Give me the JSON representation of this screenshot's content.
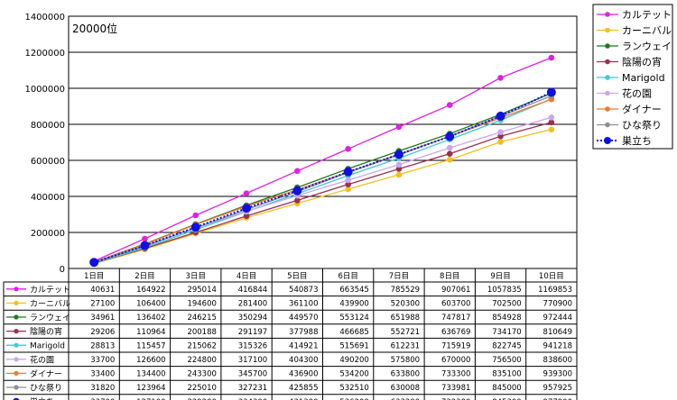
{
  "chart_data": {
    "type": "line",
    "annotation": "20000位",
    "categories": [
      "1日目",
      "2日目",
      "3日目",
      "4日目",
      "5日目",
      "6日目",
      "7日目",
      "8日目",
      "9日目",
      "10日目"
    ],
    "ylim": [
      0,
      1400000
    ],
    "yticks": [
      0,
      200000,
      400000,
      600000,
      800000,
      1000000,
      1200000,
      1400000
    ],
    "grid": true,
    "legend_position": "right",
    "series": [
      {
        "name": "カルテット",
        "color": "#e020e0",
        "values": [
          40631,
          164922,
          295014,
          416844,
          540873,
          663545,
          785529,
          907061,
          1057835,
          1169853
        ]
      },
      {
        "name": "カーニバル",
        "color": "#f0c020",
        "values": [
          27100,
          106400,
          194600,
          281400,
          361100,
          439900,
          520300,
          603700,
          702500,
          770900
        ]
      },
      {
        "name": "ランウェイ",
        "color": "#207820",
        "values": [
          34961,
          136402,
          246215,
          350294,
          449570,
          553124,
          651988,
          747817,
          854928,
          972444
        ]
      },
      {
        "name": "陰陽の宵",
        "color": "#983050",
        "values": [
          29206,
          110964,
          200188,
          291197,
          377988,
          466685,
          552721,
          636769,
          734170,
          810649
        ]
      },
      {
        "name": "Marigold",
        "color": "#40c8d8",
        "values": [
          28813,
          115457,
          215062,
          315326,
          414921,
          515691,
          612231,
          715919,
          822745,
          941218
        ]
      },
      {
        "name": "花の園",
        "color": "#c8a8f0",
        "values": [
          33700,
          126600,
          224800,
          317100,
          404300,
          490200,
          575800,
          670000,
          756500,
          838600
        ]
      },
      {
        "name": "ダイナー",
        "color": "#f07830",
        "values": [
          33400,
          134400,
          243300,
          345700,
          436900,
          534200,
          633800,
          733300,
          835100,
          939300
        ]
      },
      {
        "name": "ひな祭り",
        "color": "#909090",
        "values": [
          31820,
          123964,
          225010,
          327231,
          425855,
          532510,
          630008,
          733981,
          845000,
          957925
        ]
      },
      {
        "name": "巣立ち",
        "color": "#1010e0",
        "dashed": true,
        "values": [
          33700,
          127100,
          229200,
          334300,
          431300,
          536200,
          633200,
          732300,
          845300,
          977900
        ]
      }
    ]
  }
}
